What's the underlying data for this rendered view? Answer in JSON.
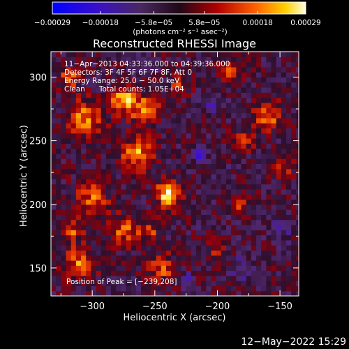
{
  "chart_data": {
    "type": "heatmap",
    "title": "Reconstructed RHESSI Image",
    "xlabel": "Heliocentric X (arcsec)",
    "ylabel": "Heliocentric Y (arcsec)",
    "xlim": [
      -333,
      -135
    ],
    "ylim": [
      128,
      320
    ],
    "x_ticks": [
      -300,
      -250,
      -200,
      -150
    ],
    "x_tick_labels": [
      "−300",
      "−250",
      "−200",
      "−150"
    ],
    "y_ticks": [
      150,
      200,
      250,
      300
    ],
    "y_tick_labels": [
      "150",
      "200",
      "250",
      "300"
    ],
    "colorbar": {
      "range": [
        -0.00029,
        0.00029
      ],
      "ticks": [
        -0.00029,
        -0.00018,
        -5.8e-05,
        5.8e-05,
        0.00018,
        0.00029
      ],
      "tick_labels": [
        "−0.00029",
        "−0.00018",
        "−5.8e−05",
        "5.8e−05",
        "0.00018",
        "0.00029"
      ],
      "units": "(photons cm⁻² s⁻¹ asec⁻²)"
    },
    "annotations": [
      "11−Apr−2013 04:33:36.000 to 04:39:36.000",
      "Detectors: 3F 4F 5F 6F 7F 8F, Att 0",
      "Energy Range: 25.0 − 50.0 keV",
      "Clean      Total counts: 1.05E+04"
    ],
    "peak_label": "Position of Peak = [−239,208]",
    "peak": [
      -239,
      208
    ],
    "sources": [
      {
        "x": -239,
        "y": 208,
        "sigma": 7,
        "amp": 1.0
      },
      {
        "x": -265,
        "y": 240,
        "sigma": 9,
        "amp": 0.75
      },
      {
        "x": -275,
        "y": 283,
        "sigma": 7,
        "amp": 0.8
      },
      {
        "x": -258,
        "y": 275,
        "sigma": 8,
        "amp": 0.7
      },
      {
        "x": -305,
        "y": 268,
        "sigma": 10,
        "amp": 0.65
      },
      {
        "x": -318,
        "y": 300,
        "sigma": 6,
        "amp": 0.55
      },
      {
        "x": -300,
        "y": 205,
        "sigma": 9,
        "amp": 0.55
      },
      {
        "x": -275,
        "y": 180,
        "sigma": 8,
        "amp": 0.55
      },
      {
        "x": -255,
        "y": 180,
        "sigma": 6,
        "amp": 0.5
      },
      {
        "x": -245,
        "y": 150,
        "sigma": 8,
        "amp": 0.5
      },
      {
        "x": -310,
        "y": 155,
        "sigma": 9,
        "amp": 0.6
      },
      {
        "x": -315,
        "y": 180,
        "sigma": 6,
        "amp": 0.5
      },
      {
        "x": -160,
        "y": 270,
        "sigma": 8,
        "amp": 0.6
      },
      {
        "x": -180,
        "y": 250,
        "sigma": 6,
        "amp": 0.45
      },
      {
        "x": -148,
        "y": 230,
        "sigma": 6,
        "amp": 0.45
      },
      {
        "x": -182,
        "y": 200,
        "sigma": 5,
        "amp": 0.4
      },
      {
        "x": -190,
        "y": 305,
        "sigma": 6,
        "amp": 0.4
      },
      {
        "x": -200,
        "y": 165,
        "sigma": 5,
        "amp": 0.35
      },
      {
        "x": -230,
        "y": 295,
        "sigma": 6,
        "amp": 0.4
      },
      {
        "x": -215,
        "y": 240,
        "sigma": 4,
        "amp": -0.45
      },
      {
        "x": -205,
        "y": 280,
        "sigma": 5,
        "amp": -0.4
      },
      {
        "x": -180,
        "y": 150,
        "sigma": 6,
        "amp": -0.4
      },
      {
        "x": -150,
        "y": 180,
        "sigma": 6,
        "amp": -0.35
      },
      {
        "x": -225,
        "y": 140,
        "sigma": 4,
        "amp": -0.45
      },
      {
        "x": -195,
        "y": 225,
        "sigma": 4,
        "amp": -0.35
      }
    ]
  },
  "footer": {
    "date_stamp": "12−May−2022 15:29"
  }
}
